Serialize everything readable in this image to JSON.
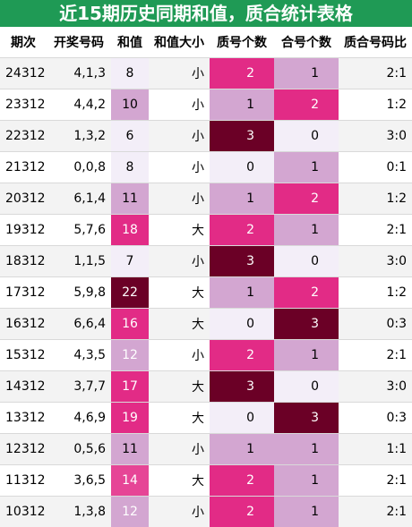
{
  "title": "近15期历史同期和值，质合统计表格",
  "headers": [
    "期次",
    "开奖号码",
    "和值",
    "和值大小",
    "质号个数",
    "合号个数",
    "质合号码比"
  ],
  "colors": {
    "header_bg": "#1f9a55",
    "level0": "#f3eef8",
    "level1": "#d3a6d1",
    "level2": "#e22b86",
    "level3": "#6b0026",
    "sum_light": "#f3eef8",
    "sum_mid": "#cfa5d2",
    "sum_pink": "#e64596",
    "sum_dark": "#6a0026"
  },
  "rows": [
    {
      "issue": "24312",
      "nums": "4,1,3",
      "sum": "8",
      "size": "小",
      "prime": "2",
      "comp": "1",
      "ratio": "2:1"
    },
    {
      "issue": "23312",
      "nums": "4,4,2",
      "sum": "10",
      "size": "小",
      "prime": "1",
      "comp": "2",
      "ratio": "1:2"
    },
    {
      "issue": "22312",
      "nums": "1,3,2",
      "sum": "6",
      "size": "小",
      "prime": "3",
      "comp": "0",
      "ratio": "3:0"
    },
    {
      "issue": "21312",
      "nums": "0,0,8",
      "sum": "8",
      "size": "小",
      "prime": "0",
      "comp": "1",
      "ratio": "0:1"
    },
    {
      "issue": "20312",
      "nums": "6,1,4",
      "sum": "11",
      "size": "小",
      "prime": "1",
      "comp": "2",
      "ratio": "1:2"
    },
    {
      "issue": "19312",
      "nums": "5,7,6",
      "sum": "18",
      "size": "大",
      "prime": "2",
      "comp": "1",
      "ratio": "2:1"
    },
    {
      "issue": "18312",
      "nums": "1,1,5",
      "sum": "7",
      "size": "小",
      "prime": "3",
      "comp": "0",
      "ratio": "3:0"
    },
    {
      "issue": "17312",
      "nums": "5,9,8",
      "sum": "22",
      "size": "大",
      "prime": "1",
      "comp": "2",
      "ratio": "1:2"
    },
    {
      "issue": "16312",
      "nums": "6,6,4",
      "sum": "16",
      "size": "大",
      "prime": "0",
      "comp": "3",
      "ratio": "0:3"
    },
    {
      "issue": "15312",
      "nums": "4,3,5",
      "sum": "12",
      "size": "小",
      "prime": "2",
      "comp": "1",
      "ratio": "2:1"
    },
    {
      "issue": "14312",
      "nums": "3,7,7",
      "sum": "17",
      "size": "大",
      "prime": "3",
      "comp": "0",
      "ratio": "3:0"
    },
    {
      "issue": "13312",
      "nums": "4,6,9",
      "sum": "19",
      "size": "大",
      "prime": "0",
      "comp": "3",
      "ratio": "0:3"
    },
    {
      "issue": "12312",
      "nums": "0,5,6",
      "sum": "11",
      "size": "小",
      "prime": "1",
      "comp": "1",
      "ratio": "1:1"
    },
    {
      "issue": "11312",
      "nums": "3,6,5",
      "sum": "14",
      "size": "大",
      "prime": "2",
      "comp": "1",
      "ratio": "2:1"
    },
    {
      "issue": "10312",
      "nums": "1,3,8",
      "sum": "12",
      "size": "小",
      "prime": "2",
      "comp": "1",
      "ratio": "2:1"
    }
  ]
}
